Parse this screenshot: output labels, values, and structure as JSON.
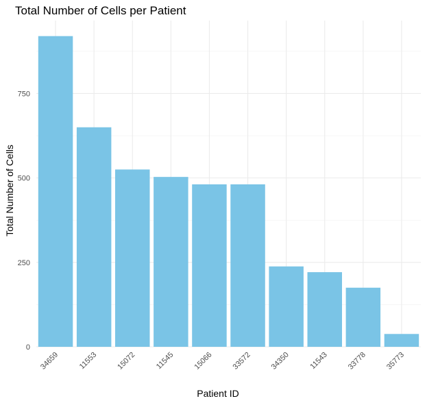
{
  "chart_data": {
    "type": "bar",
    "title": "Total Number of Cells per Patient",
    "xlabel": "Patient ID",
    "ylabel": "Total Number of Cells",
    "categories": [
      "34659",
      "11553",
      "15072",
      "11545",
      "15066",
      "33572",
      "34350",
      "11543",
      "33778",
      "35773"
    ],
    "values": [
      920,
      650,
      525,
      503,
      481,
      481,
      238,
      221,
      175,
      38
    ],
    "ylim": [
      0,
      966
    ],
    "yticks": [
      0,
      250,
      500,
      750
    ],
    "ytick_labels": [
      "0",
      "250",
      "500",
      "750"
    ],
    "grid": true,
    "bar_color": "#7ac4e6",
    "legend": "none"
  }
}
